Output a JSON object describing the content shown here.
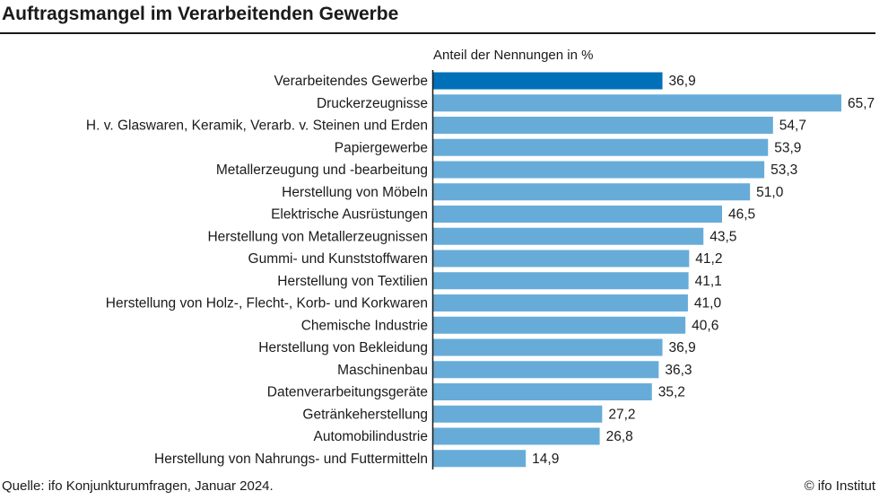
{
  "chart_data": {
    "type": "bar",
    "orientation": "horizontal",
    "title": "Auftragsmangel im Verarbeitenden Gewerbe",
    "unit_label": "Anteil der Nennungen in %",
    "categories": [
      "Verarbeitendes Gewerbe",
      "Druckerzeugnisse",
      "H. v. Glaswaren, Keramik, Verarb. v. Steinen und Erden",
      "Papiergewerbe",
      "Metallerzeugung und -bearbeitung",
      "Herstellung von Möbeln",
      "Elektrische Ausrüstungen",
      "Herstellung von Metallerzeugnissen",
      "Gummi- und Kunststoffwaren",
      "Herstellung von Textilien",
      "Herstellung von Holz-, Flecht-, Korb- und Korkwaren",
      "Chemische Industrie",
      "Herstellung von Bekleidung",
      "Maschinenbau",
      "Datenverarbeitungsgeräte",
      "Getränkeherstellung",
      "Automobilindustrie",
      "Herstellung von Nahrungs- und Futtermitteln"
    ],
    "values": [
      36.9,
      65.7,
      54.7,
      53.9,
      53.3,
      51.0,
      46.5,
      43.5,
      41.2,
      41.1,
      41.0,
      40.6,
      36.9,
      36.3,
      35.2,
      27.2,
      26.8,
      14.9
    ],
    "labels": [
      "36,9",
      "65,7",
      "54,7",
      "53,9",
      "53,3",
      "51,0",
      "46,5",
      "43,5",
      "41,2",
      "41,1",
      "41,0",
      "40,6",
      "36,9",
      "36,3",
      "35,2",
      "27,2",
      "26,8",
      "14,9"
    ],
    "highlight_index": 0,
    "colors": {
      "highlight": "#0070b8",
      "bar": "#67acd8"
    },
    "xlim": [
      0,
      70
    ],
    "grid": false,
    "legend": "none"
  },
  "source": "Quelle: ifo Konjunkturumfragen, Januar 2024.",
  "credit": "© ifo Institut"
}
